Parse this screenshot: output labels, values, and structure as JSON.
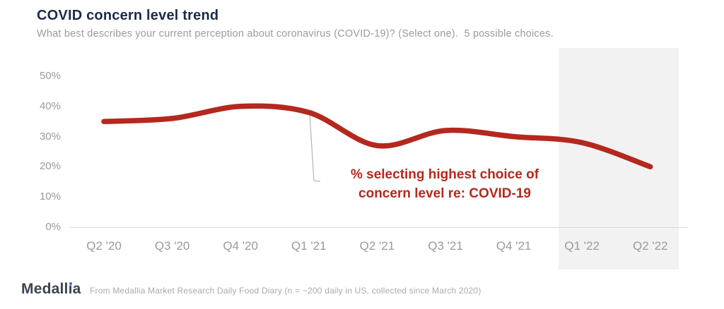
{
  "chart_data": {
    "type": "line",
    "title": "COVID concern level trend",
    "subtitle": "What best describes your current perception about coronavirus (COVID-19)? (Select one).  5 possible choices.",
    "categories": [
      "Q2 '20",
      "Q3 '20",
      "Q4 '20",
      "Q1 '21",
      "Q2 '21",
      "Q3 '21",
      "Q4 '21",
      "Q1 '22",
      "Q2 '22"
    ],
    "values": [
      35,
      36,
      40,
      38,
      27,
      32,
      30,
      28,
      20
    ],
    "unit": "%",
    "yticks": [
      50,
      40,
      30,
      20,
      10,
      0
    ],
    "ylim": [
      0,
      50
    ],
    "grid": false,
    "legend_position": "none",
    "line_color": "#b4281e",
    "axis_color": "#d9d9d9",
    "tick_color": "#9a9a9a",
    "highlight_region": {
      "from": "Q1 '22",
      "to": "Q2 '22",
      "color": "#f2f2f2"
    },
    "annotation_lines": [
      "% selecting highest choice of",
      "concern level re: COVID-19"
    ],
    "annotation_color": "#b4281e"
  },
  "footer": {
    "logo_pre": "Medall",
    "logo_i": "ı",
    "logo_post": "a",
    "source": "From Medallia Market Research Daily Food Diary (n = ~200 daily in US, collected since March 2020)"
  }
}
